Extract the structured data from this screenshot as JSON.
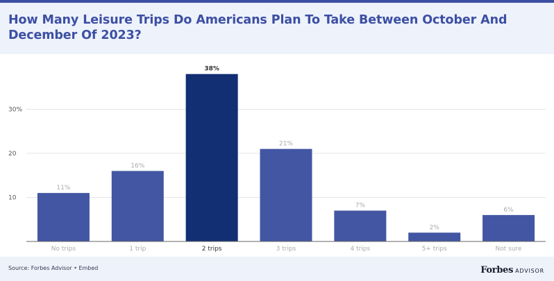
{
  "header": {
    "title": "How Many Leisure Trips Do Americans Plan To Take Between October And December Of 2023?"
  },
  "footer": {
    "source": "Source: Forbes Advisor • Embed",
    "logo_word": "Forbes",
    "logo_sub": "ADVISOR"
  },
  "colors": {
    "bar": "#4356a3",
    "bar_highlight": "#122f73",
    "grid": "#e4e4e8",
    "axis": "#666666",
    "label_muted": "#aaaaaa",
    "label_strong": "#333333"
  },
  "chart_data": {
    "type": "bar",
    "title": "How Many Leisure Trips Do Americans Plan To Take Between October And December Of 2023?",
    "categories": [
      "No trips",
      "1 trip",
      "2 trips",
      "3 trips",
      "4 trips",
      "5+ trips",
      "Not sure"
    ],
    "values": [
      11,
      16,
      38,
      21,
      7,
      2,
      6
    ],
    "value_labels": [
      "11%",
      "16%",
      "38%",
      "21%",
      "7%",
      "2%",
      "6%"
    ],
    "highlight_index": 2,
    "yticks": [
      10,
      20,
      30
    ],
    "ytick_labels": [
      "10",
      "20",
      "30%"
    ],
    "ylim": [
      0,
      40
    ],
    "xlabel": "",
    "ylabel": "",
    "grid": true,
    "legend": "none"
  }
}
